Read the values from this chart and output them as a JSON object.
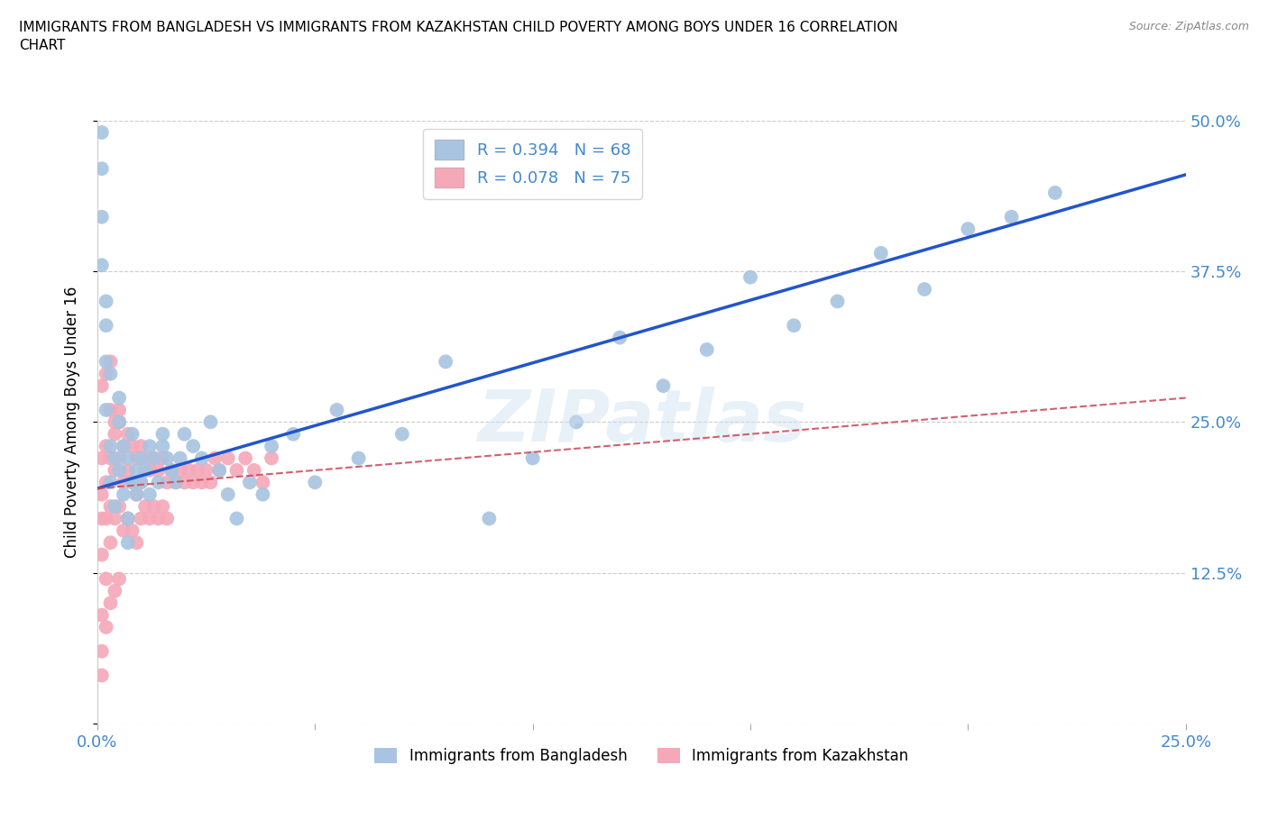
{
  "title": "IMMIGRANTS FROM BANGLADESH VS IMMIGRANTS FROM KAZAKHSTAN CHILD POVERTY AMONG BOYS UNDER 16 CORRELATION\nCHART",
  "source": "Source: ZipAtlas.com",
  "ylabel": "Child Poverty Among Boys Under 16",
  "xlim": [
    0.0,
    0.25
  ],
  "ylim": [
    0.0,
    0.5
  ],
  "ytick_values": [
    0.0,
    0.125,
    0.25,
    0.375,
    0.5
  ],
  "ytick_labels": [
    "",
    "12.5%",
    "25.0%",
    "37.5%",
    "50.0%"
  ],
  "xtick_values": [
    0.0,
    0.05,
    0.1,
    0.15,
    0.2,
    0.25
  ],
  "xtick_labels": [
    "0.0%",
    "",
    "",
    "",
    "",
    "25.0%"
  ],
  "legend_blue_label": "R = 0.394   N = 68",
  "legend_pink_label": "R = 0.078   N = 75",
  "blue_color": "#a8c4e0",
  "pink_color": "#f4a8b8",
  "line_blue_color": "#2255cc",
  "line_pink_color": "#cc4455",
  "watermark": "ZIPatlas",
  "bangladesh_x": [
    0.001,
    0.001,
    0.001,
    0.002,
    0.002,
    0.002,
    0.003,
    0.003,
    0.004,
    0.004,
    0.005,
    0.005,
    0.006,
    0.006,
    0.007,
    0.007,
    0.008,
    0.008,
    0.009,
    0.009,
    0.01,
    0.01,
    0.011,
    0.012,
    0.012,
    0.013,
    0.014,
    0.015,
    0.016,
    0.017,
    0.018,
    0.019,
    0.02,
    0.022,
    0.024,
    0.026,
    0.028,
    0.03,
    0.032,
    0.035,
    0.038,
    0.04,
    0.045,
    0.05,
    0.055,
    0.06,
    0.07,
    0.08,
    0.09,
    0.1,
    0.11,
    0.12,
    0.13,
    0.14,
    0.15,
    0.16,
    0.17,
    0.18,
    0.19,
    0.2,
    0.21,
    0.22,
    0.005,
    0.003,
    0.002,
    0.001,
    0.007,
    0.015
  ],
  "bangladesh_y": [
    0.46,
    0.42,
    0.38,
    0.35,
    0.3,
    0.26,
    0.23,
    0.2,
    0.22,
    0.18,
    0.25,
    0.21,
    0.19,
    0.23,
    0.22,
    0.17,
    0.24,
    0.2,
    0.21,
    0.19,
    0.22,
    0.2,
    0.21,
    0.19,
    0.23,
    0.22,
    0.2,
    0.24,
    0.22,
    0.21,
    0.2,
    0.22,
    0.24,
    0.23,
    0.22,
    0.25,
    0.21,
    0.19,
    0.17,
    0.2,
    0.19,
    0.23,
    0.24,
    0.2,
    0.26,
    0.22,
    0.24,
    0.3,
    0.17,
    0.22,
    0.25,
    0.32,
    0.28,
    0.31,
    0.37,
    0.33,
    0.35,
    0.39,
    0.36,
    0.41,
    0.42,
    0.44,
    0.27,
    0.29,
    0.33,
    0.49,
    0.15,
    0.23
  ],
  "kazakhstan_x": [
    0.001,
    0.001,
    0.001,
    0.001,
    0.002,
    0.002,
    0.002,
    0.002,
    0.003,
    0.003,
    0.003,
    0.003,
    0.004,
    0.004,
    0.004,
    0.005,
    0.005,
    0.005,
    0.006,
    0.006,
    0.006,
    0.007,
    0.007,
    0.007,
    0.008,
    0.008,
    0.008,
    0.009,
    0.009,
    0.009,
    0.01,
    0.01,
    0.01,
    0.011,
    0.011,
    0.012,
    0.012,
    0.013,
    0.013,
    0.014,
    0.014,
    0.015,
    0.015,
    0.016,
    0.016,
    0.017,
    0.018,
    0.019,
    0.02,
    0.021,
    0.022,
    0.023,
    0.024,
    0.025,
    0.026,
    0.027,
    0.028,
    0.03,
    0.032,
    0.034,
    0.036,
    0.038,
    0.04,
    0.001,
    0.001,
    0.001,
    0.002,
    0.002,
    0.003,
    0.003,
    0.004,
    0.004,
    0.005,
    0.005,
    0.001
  ],
  "kazakhstan_y": [
    0.22,
    0.19,
    0.17,
    0.14,
    0.23,
    0.2,
    0.17,
    0.12,
    0.26,
    0.22,
    0.18,
    0.15,
    0.24,
    0.21,
    0.17,
    0.25,
    0.22,
    0.18,
    0.23,
    0.2,
    0.16,
    0.24,
    0.21,
    0.17,
    0.23,
    0.2,
    0.16,
    0.22,
    0.19,
    0.15,
    0.23,
    0.2,
    0.17,
    0.22,
    0.18,
    0.21,
    0.17,
    0.22,
    0.18,
    0.21,
    0.17,
    0.22,
    0.18,
    0.2,
    0.17,
    0.21,
    0.2,
    0.21,
    0.2,
    0.21,
    0.2,
    0.21,
    0.2,
    0.21,
    0.2,
    0.22,
    0.21,
    0.22,
    0.21,
    0.22,
    0.21,
    0.2,
    0.22,
    0.28,
    0.09,
    0.06,
    0.29,
    0.08,
    0.3,
    0.1,
    0.25,
    0.11,
    0.26,
    0.12,
    0.04
  ],
  "grid_color": "#cccccc",
  "tick_color": "#4488cc",
  "background_color": "#ffffff"
}
